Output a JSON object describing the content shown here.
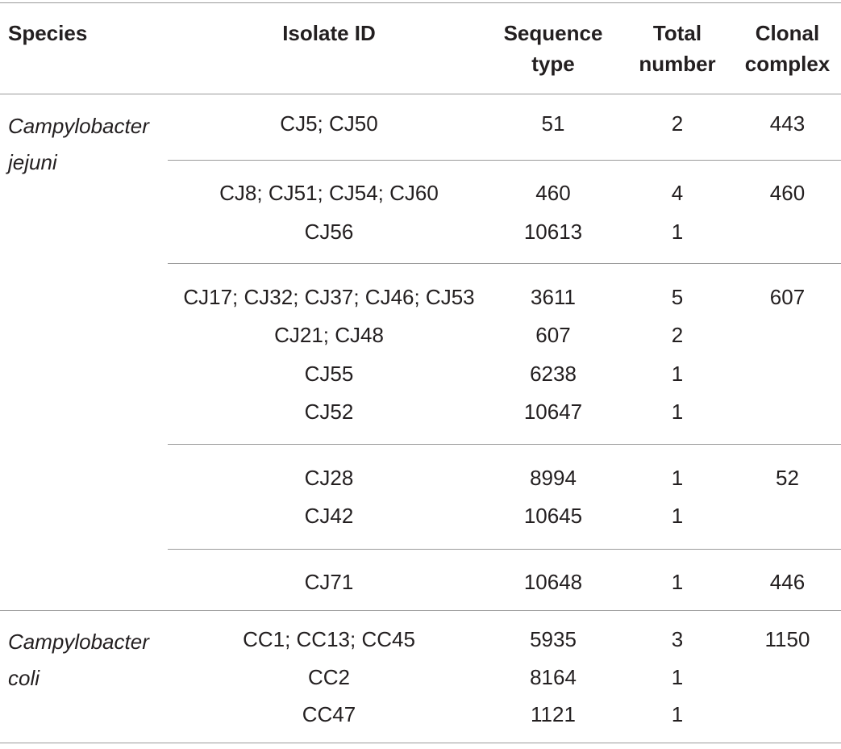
{
  "headers": {
    "species": "Species",
    "isolate_id": "Isolate ID",
    "sequence_type": [
      "Sequence",
      "type"
    ],
    "total_number": [
      "Total",
      "number"
    ],
    "clonal_complex": [
      "Clonal",
      "complex"
    ]
  },
  "species": [
    {
      "lines": [
        "Campylobacter",
        "jejuni"
      ]
    },
    {
      "lines": [
        "Campylobacter",
        "coli"
      ]
    }
  ],
  "rows": [
    {
      "isolate": "CJ5; CJ50",
      "sequence_type": "51",
      "total": "2",
      "clonal_complex": "443"
    },
    {
      "isolate": "CJ8; CJ51; CJ54; CJ60",
      "sequence_type": "460",
      "total": "4",
      "clonal_complex": "460"
    },
    {
      "isolate": "CJ56",
      "sequence_type": "10613",
      "total": "1",
      "clonal_complex": ""
    },
    {
      "isolate": "CJ17; CJ32; CJ37; CJ46; CJ53",
      "sequence_type": "3611",
      "total": "5",
      "clonal_complex": "607"
    },
    {
      "isolate": "CJ21; CJ48",
      "sequence_type": "607",
      "total": "2",
      "clonal_complex": ""
    },
    {
      "isolate": "CJ55",
      "sequence_type": "6238",
      "total": "1",
      "clonal_complex": ""
    },
    {
      "isolate": "CJ52",
      "sequence_type": "10647",
      "total": "1",
      "clonal_complex": ""
    },
    {
      "isolate": "CJ28",
      "sequence_type": "8994",
      "total": "1",
      "clonal_complex": "52"
    },
    {
      "isolate": "CJ42",
      "sequence_type": "10645",
      "total": "1",
      "clonal_complex": ""
    },
    {
      "isolate": "CJ71",
      "sequence_type": "10648",
      "total": "1",
      "clonal_complex": "446"
    },
    {
      "isolate": "CC1; CC13; CC45",
      "sequence_type": "5935",
      "total": "3",
      "clonal_complex": "1150"
    },
    {
      "isolate": "CC2",
      "sequence_type": "8164",
      "total": "1",
      "clonal_complex": ""
    },
    {
      "isolate": "CC47",
      "sequence_type": "1121",
      "total": "1",
      "clonal_complex": ""
    }
  ]
}
